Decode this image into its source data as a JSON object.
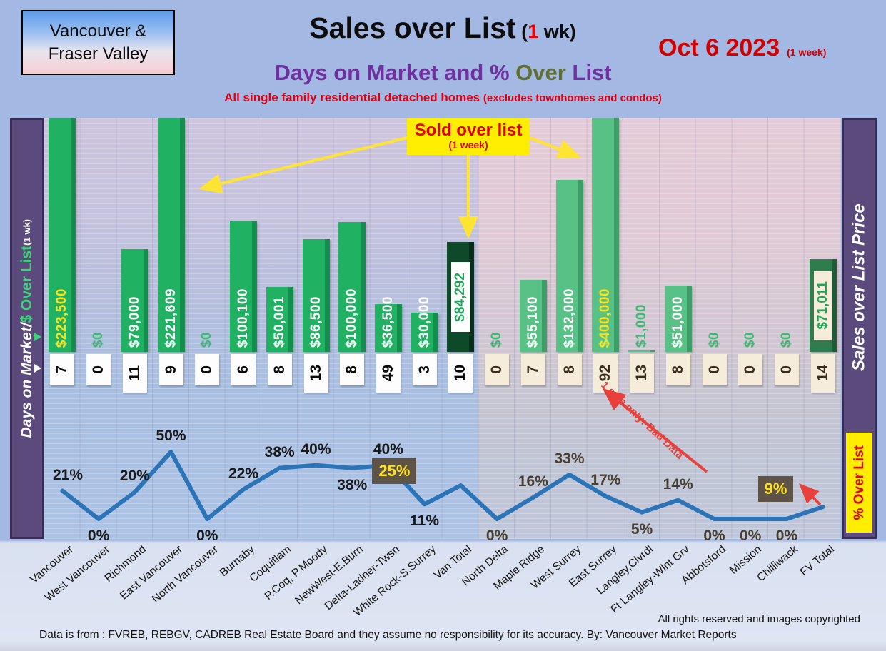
{
  "header": {
    "region_line1": "Vancouver &",
    "region_line2": "Fraser Valley",
    "title": "Sales over List",
    "title_paren": " (",
    "title_num": "1",
    "title_tail": " wk)",
    "date": "Oct 6  2023",
    "date_note": "(1 week)",
    "subtitle_part1": "Days on Market and % ",
    "subtitle_part2": "Over",
    "subtitle_part3": " List",
    "tagline_main": "All single family residential detached homes ",
    "tagline_paren": "(excludes townhomes and condos)"
  },
  "sidebar_left": {
    "label_main": "Days on Market/",
    "label_green": "$ Over List",
    "label_note": "(1 wk)"
  },
  "sidebar_right": {
    "label": "Sales over List Price",
    "badge": "% Over List"
  },
  "callout": {
    "line1": "Sold over list",
    "line2": "(1 week)"
  },
  "annotations": {
    "bad_data": "1 sale only: Bad Data"
  },
  "footer": {
    "rights": "All rights reserved and  images copyrighted",
    "source": "Data is from : FVREB, REBGV, CADREB Real Estate Board and they assume no responsibility for its accuracy. By: Vancouver Market Reports"
  },
  "chart_data": {
    "type": "combo",
    "categories": [
      "Vancouver",
      "West Vancouver",
      "Richmond",
      "East Vancouver",
      "North Vancouver",
      "Burnaby",
      "Coquitlam",
      "P.Coq, P.Moody",
      "NewWest-E.Burn",
      "Delta-Ladner-Twsn",
      "White Rock-S.Surrey",
      "Van Total",
      "North Delta",
      "Maple Ridge",
      "West Surrey",
      "East Surrey",
      "Langley,Clvrdl",
      "Ft Langley-Wlnt Grv",
      "Abbotsford",
      "Mission",
      "Chilliwack",
      "FV Total"
    ],
    "series": [
      {
        "name": "$ Over List",
        "type": "bar",
        "values": [
          223500,
          0,
          79000,
          221609,
          0,
          100100,
          50001,
          86500,
          100000,
          36500,
          30000,
          84292,
          0,
          55100,
          132000,
          400000,
          1000,
          51000,
          0,
          0,
          0,
          71011
        ],
        "labels": [
          "$223,500",
          "$0",
          "$79,000",
          "$221,609",
          "$0",
          "$100,100",
          "$50,001",
          "$86,500",
          "$100,000",
          "$36,500",
          "$30,000",
          "$84,292",
          "$0",
          "$55,100",
          "$132,000",
          "$400,000",
          "$1,000",
          "$51,000",
          "$0",
          "$0",
          "$0",
          "$71,011"
        ],
        "label_styles": [
          "yellow",
          "green",
          "white",
          "white",
          "green",
          "white",
          "white",
          "white",
          "white",
          "white",
          "white",
          "boxed",
          "green",
          "white",
          "white",
          "yellow",
          "green",
          "white",
          "green",
          "green",
          "green",
          "boxed"
        ]
      },
      {
        "name": "Days on Market",
        "type": "value_row",
        "values": [
          7,
          0,
          11,
          9,
          0,
          6,
          8,
          13,
          8,
          49,
          3,
          10,
          0,
          7,
          8,
          92,
          13,
          8,
          0,
          0,
          0,
          14
        ]
      },
      {
        "name": "% Over List",
        "type": "line",
        "values": [
          21,
          0,
          20,
          50,
          0,
          22,
          38,
          40,
          38,
          40,
          11,
          25,
          0,
          16,
          33,
          17,
          5,
          14,
          0,
          0,
          0,
          9
        ],
        "labels": [
          "21%",
          "0%",
          "20%",
          "50%",
          "0%",
          "22%",
          "38%",
          "40%",
          "38%",
          "40%",
          "11%",
          "25%",
          "0%",
          "16%",
          "33%",
          "17%",
          "5%",
          "14%",
          "0%",
          "0%",
          "0%",
          "9%"
        ],
        "label_positions": [
          "above",
          "below",
          "above",
          "above",
          "below",
          "above",
          "above",
          "above",
          "below",
          "above",
          "below",
          "boxed",
          "below",
          "above",
          "above",
          "above",
          "below",
          "above",
          "below",
          "below",
          "below",
          "boxed"
        ]
      }
    ],
    "sections": {
      "van_last_index": 11,
      "fv_first_index": 12
    },
    "bar_axis": {
      "visible_max_dollars": 180000,
      "clipped_bars": [
        "Vancouver",
        "East Vancouver",
        "East Surrey"
      ]
    },
    "line_axis": {
      "min": 0,
      "max": 50,
      "unit": "%"
    },
    "grid": "horizontal-stripes",
    "colors": {
      "bar_van": "#21b163",
      "bar_fv": "#58c186",
      "bar_total_van": "#0e4a2a",
      "bar_total_fv": "#2f7d4f",
      "line": "#2b74b8",
      "callout_bg": "#ffee00",
      "callout_text": "#e00000",
      "label_yellow": "#ffe11a",
      "label_green": "#3dbb72",
      "pct_box_bg": "#5d5447",
      "sidebar_purple": "#5b4a7c",
      "badge_yellow": "#ffee00"
    }
  }
}
